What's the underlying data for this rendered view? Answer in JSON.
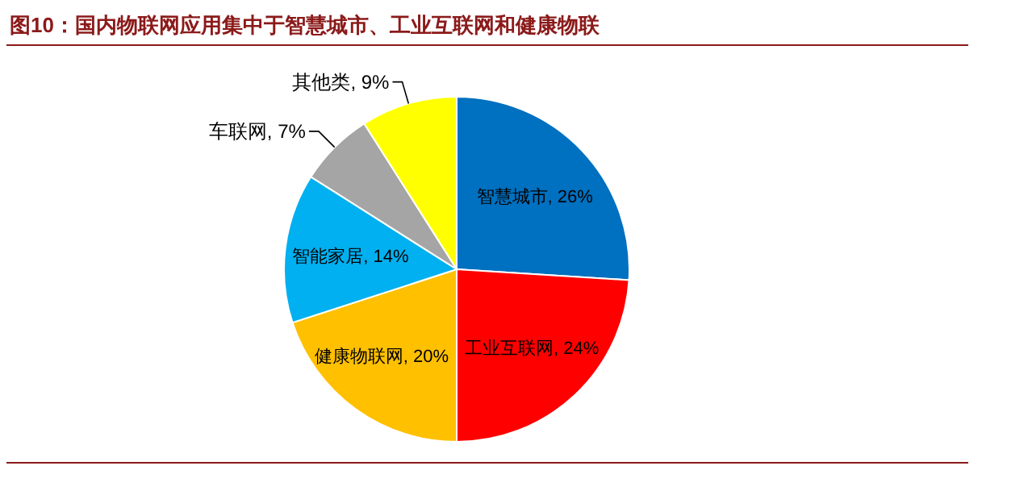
{
  "chart_data": {
    "type": "pie",
    "title": "图10：国内物联网应用集中于智慧城市、工业互联网和健康物联",
    "categories": [
      "智慧城市",
      "工业互联网",
      "健康物联网",
      "智能家居",
      "车联网",
      "其他类"
    ],
    "values": [
      26,
      24,
      20,
      14,
      7,
      9
    ],
    "value_labels": [
      ", 26%",
      ", 24%",
      ", 20%",
      ", 14%",
      ", 7%",
      ", 9%"
    ],
    "colors": [
      "#0070c0",
      "#ff0000",
      "#ffc000",
      "#00b0f0",
      "#a5a5a5",
      "#ffff00"
    ]
  }
}
